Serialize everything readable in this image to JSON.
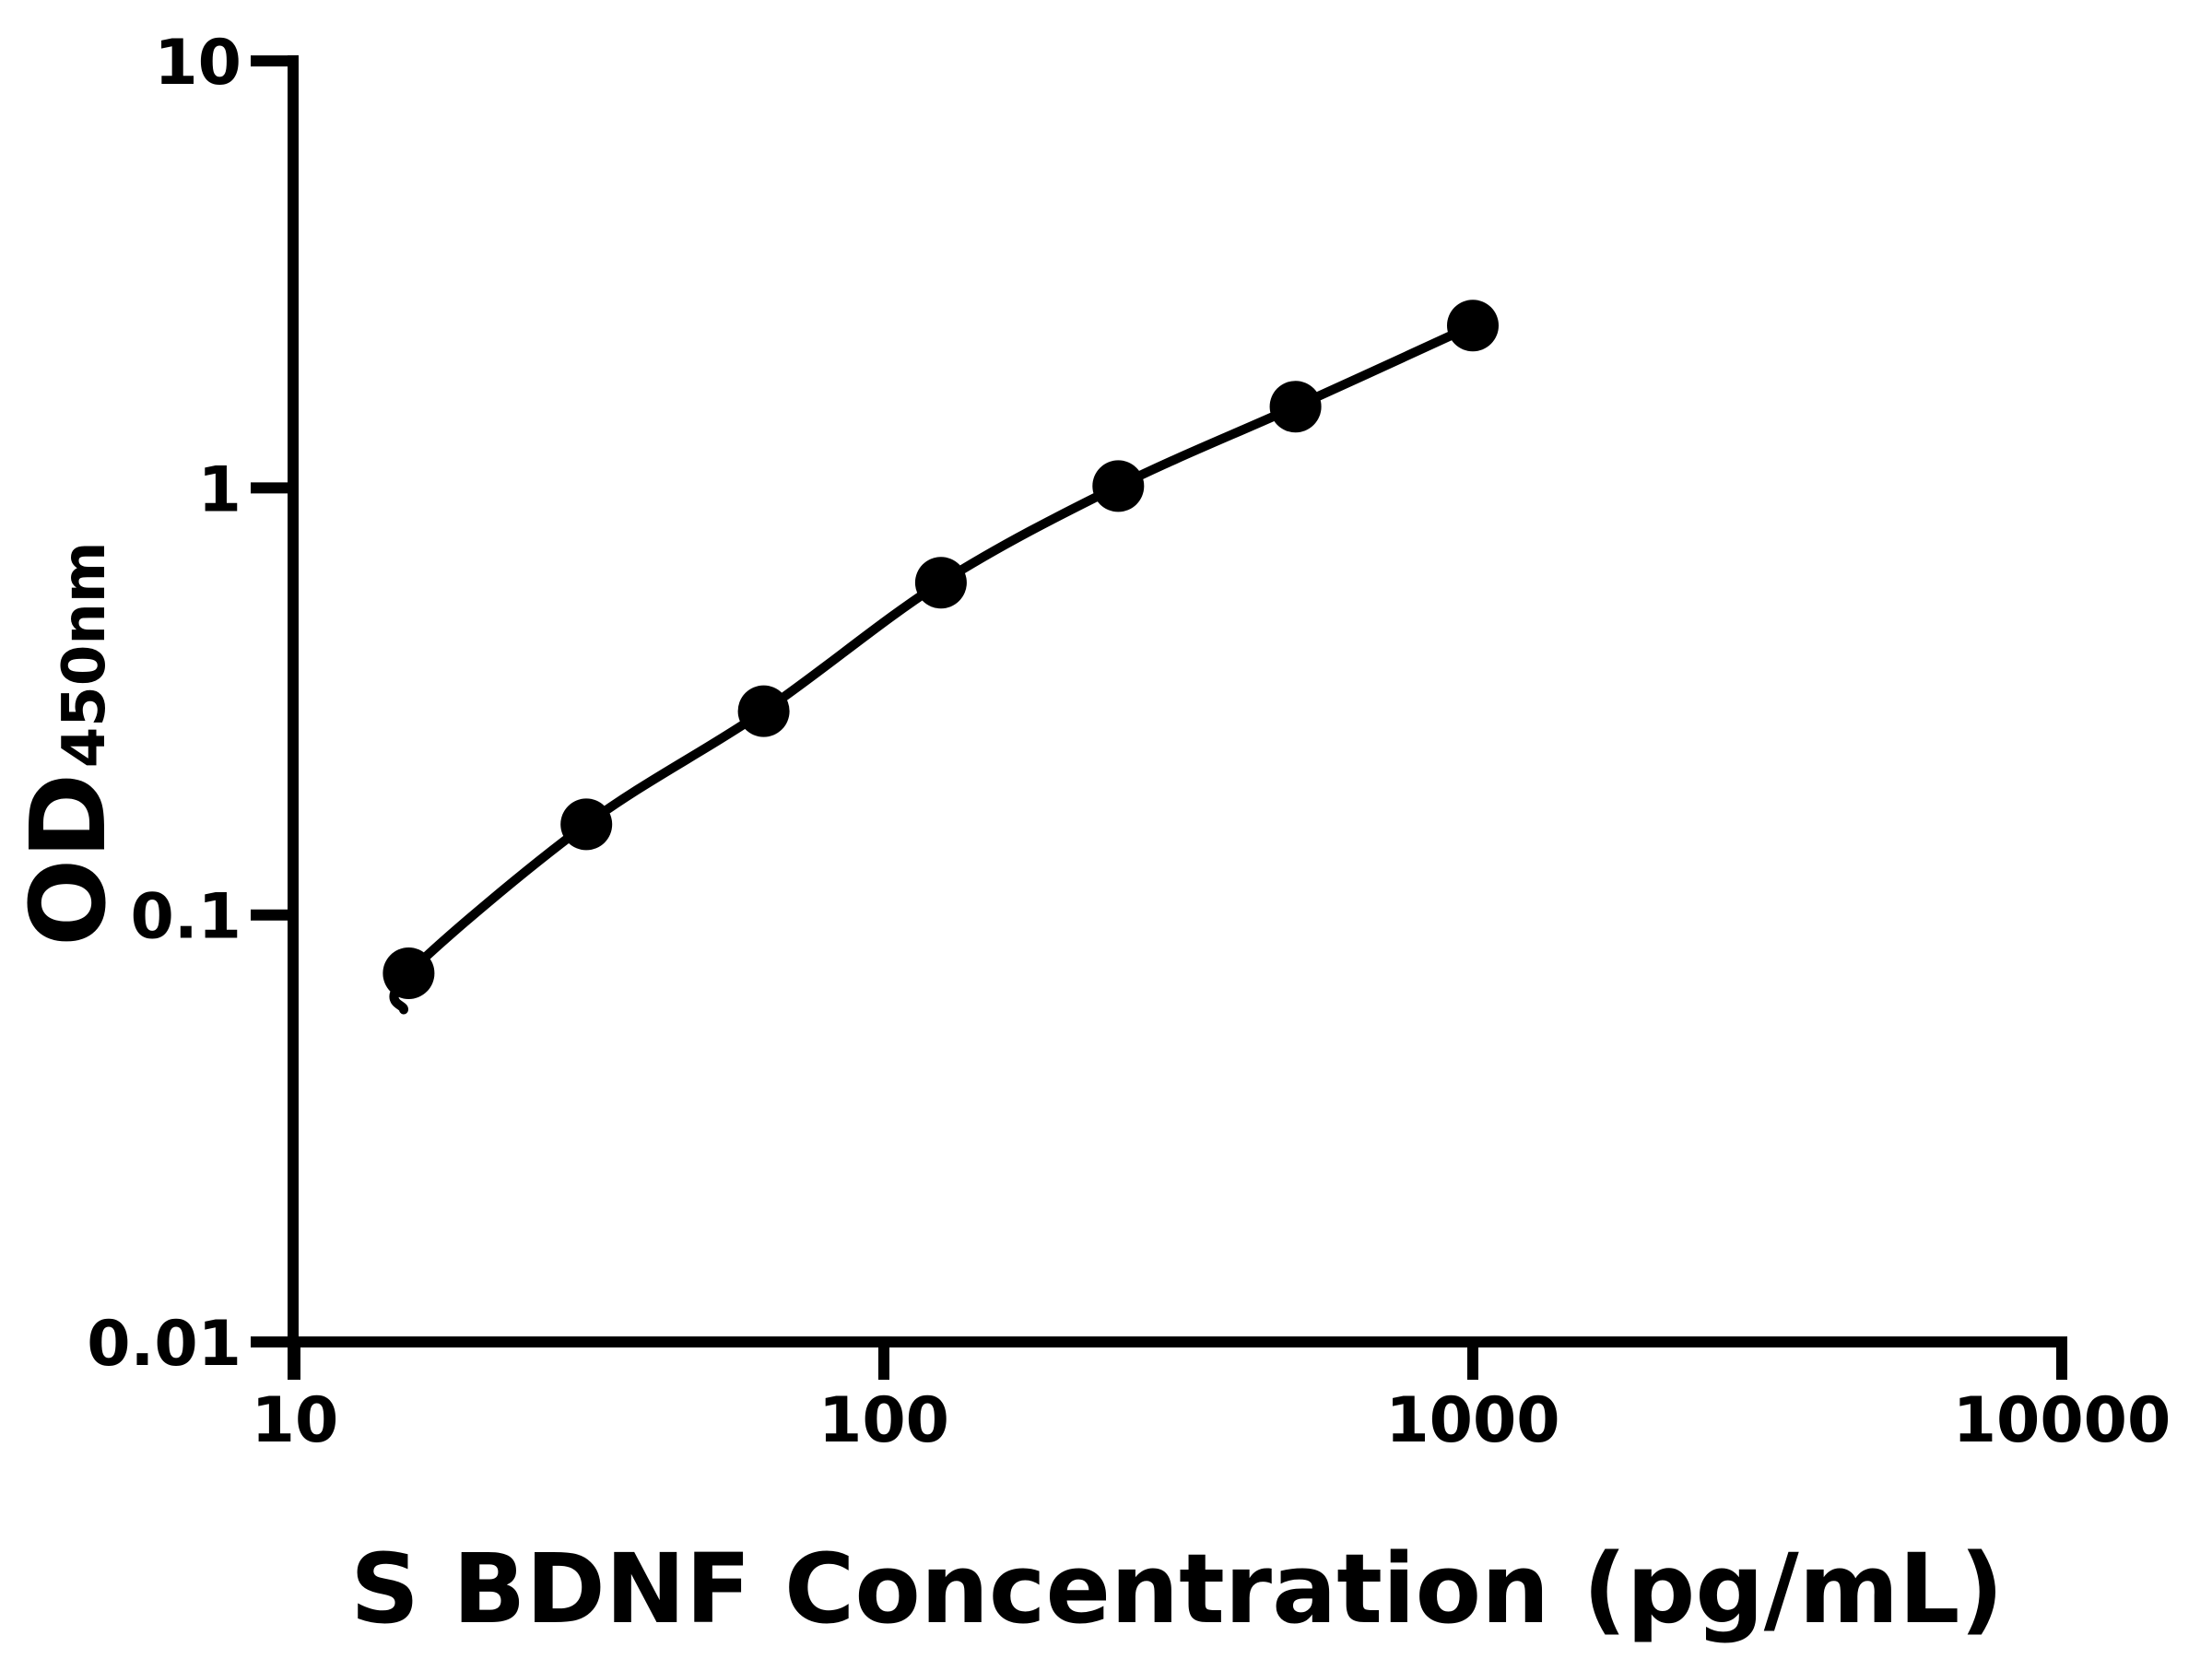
{
  "figure": {
    "background_color": "#ffffff",
    "foreground_color": "#000000"
  },
  "chart_data": {
    "type": "scatter",
    "subtype": "log-log standard curve with fitted line and filled circle markers",
    "title": "",
    "xlabel": "S BDNF Concentration (pg/mL)",
    "ylabel_main": "OD",
    "ylabel_sub": "450nm",
    "x_scale": "log10",
    "y_scale": "log10",
    "xlim": [
      10,
      10000
    ],
    "ylim": [
      0.01,
      10
    ],
    "grid": "off",
    "legend": "none",
    "x_tick_values": [
      10,
      100,
      1000,
      10000
    ],
    "x_tick_labels": [
      "10",
      "100",
      "1000",
      "10000"
    ],
    "y_tick_values": [
      10,
      1,
      0.1,
      0.01
    ],
    "y_tick_labels": [
      "10",
      "1",
      "0.1",
      "0.01"
    ],
    "points": [
      {
        "x": 15.6,
        "y": 0.073
      },
      {
        "x": 31.25,
        "y": 0.163
      },
      {
        "x": 62.5,
        "y": 0.3
      },
      {
        "x": 125,
        "y": 0.6
      },
      {
        "x": 250,
        "y": 1.01
      },
      {
        "x": 500,
        "y": 1.55
      },
      {
        "x": 1000,
        "y": 2.4
      }
    ],
    "curve_tail": {
      "x": 15.3,
      "y": 0.06
    },
    "marker_color": "#000000",
    "line_color": "#000000"
  }
}
